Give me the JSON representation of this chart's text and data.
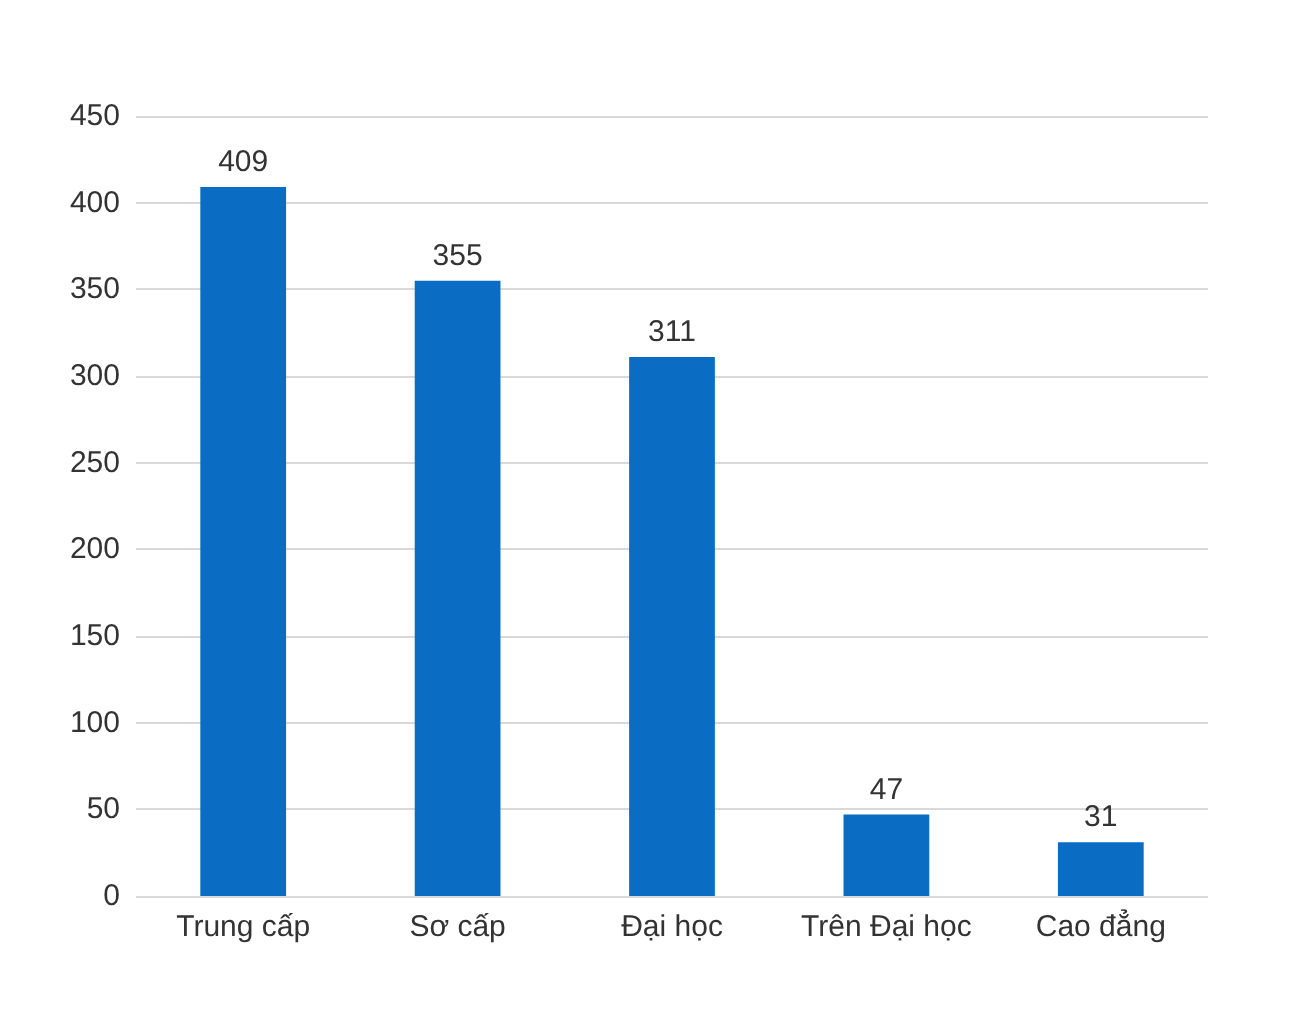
{
  "chart_data": {
    "type": "bar",
    "categories": [
      "Trung cấp",
      "Sơ cấp",
      "Đại học",
      "Trên Đại học",
      "Cao đẳng"
    ],
    "values": [
      409,
      355,
      311,
      47,
      31
    ],
    "color": "#0b6cc4",
    "ylim": [
      0,
      450
    ],
    "yticks": [
      0,
      50,
      100,
      150,
      200,
      250,
      300,
      350,
      400,
      450
    ],
    "grid": "y",
    "data_labels": true
  }
}
